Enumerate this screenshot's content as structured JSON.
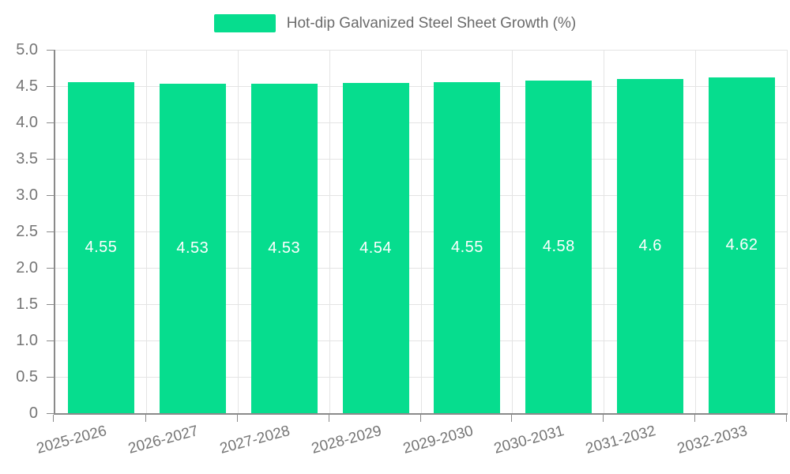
{
  "chart_data": {
    "type": "bar",
    "title": "",
    "legend": "Hot-dip Galvanized Steel Sheet Growth (%)",
    "legend_position": "top-center",
    "categories": [
      "2025-2026",
      "2026-2027",
      "2027-2028",
      "2028-2029",
      "2029-2030",
      "2030-2031",
      "2031-2032",
      "2032-2033"
    ],
    "series": [
      {
        "name": "Hot-dip Galvanized Steel Sheet Growth (%)",
        "values": [
          4.55,
          4.53,
          4.53,
          4.54,
          4.55,
          4.58,
          4.6,
          4.62
        ]
      }
    ],
    "value_labels": [
      "4.55",
      "4.53",
      "4.53",
      "4.54",
      "4.55",
      "4.58",
      "4.6",
      "4.62"
    ],
    "xlabel": "",
    "ylabel": "",
    "ylim": [
      0,
      5
    ],
    "ytick_labels": [
      "0",
      "0.5",
      "1.0",
      "1.5",
      "2.0",
      "2.5",
      "3.0",
      "3.5",
      "4.0",
      "4.5",
      "5.0"
    ],
    "grid": true,
    "colors": {
      "bar": "#06DD8E",
      "grid_line": "#E4E4E4",
      "axis_line": "#8A8A8A",
      "axis_label": "#757575",
      "legend_text": "#6B6B6B",
      "value_label": "#FFFFFF",
      "background": "#FFFFFF"
    }
  }
}
